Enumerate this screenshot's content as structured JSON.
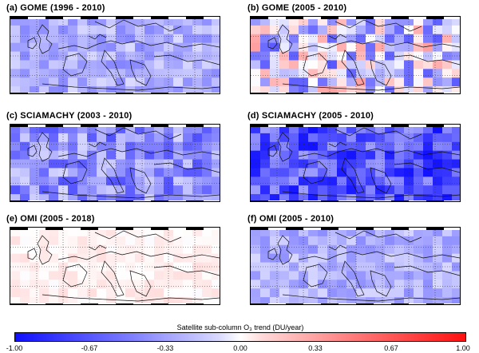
{
  "panels": [
    {
      "title": "(a) GOME (1996 - 2010)",
      "base": -0.33,
      "variation": 0.18,
      "seed": 11
    },
    {
      "title": "(b) GOME (2005 - 2010)",
      "base": -0.15,
      "variation": 0.55,
      "seed": 23
    },
    {
      "title": "(c) SCIAMACHY (2003 - 2010)",
      "base": -0.45,
      "variation": 0.28,
      "seed": 37
    },
    {
      "title": "(d) SCIAMACHY (2005 - 2010)",
      "base": -0.7,
      "variation": 0.3,
      "seed": 41
    },
    {
      "title": "(e) OMI (2005 - 2018)",
      "base": 0.06,
      "variation": 0.08,
      "seed": 53
    },
    {
      "title": "(f) OMI (2005 - 2010)",
      "base": -0.32,
      "variation": 0.16,
      "seed": 67
    }
  ],
  "colorbar": {
    "title": "Satellite sub-column O₃ trend (DU/year)",
    "ticks": [
      "-1.00",
      "-0.67",
      "-0.33",
      "0.00",
      "0.33",
      "0.67",
      "1.00"
    ],
    "min": -1.0,
    "max": 1.0,
    "colors": {
      "negative": "#1010ff",
      "neutral": "#ffffff",
      "positive": "#ff1010"
    }
  }
}
